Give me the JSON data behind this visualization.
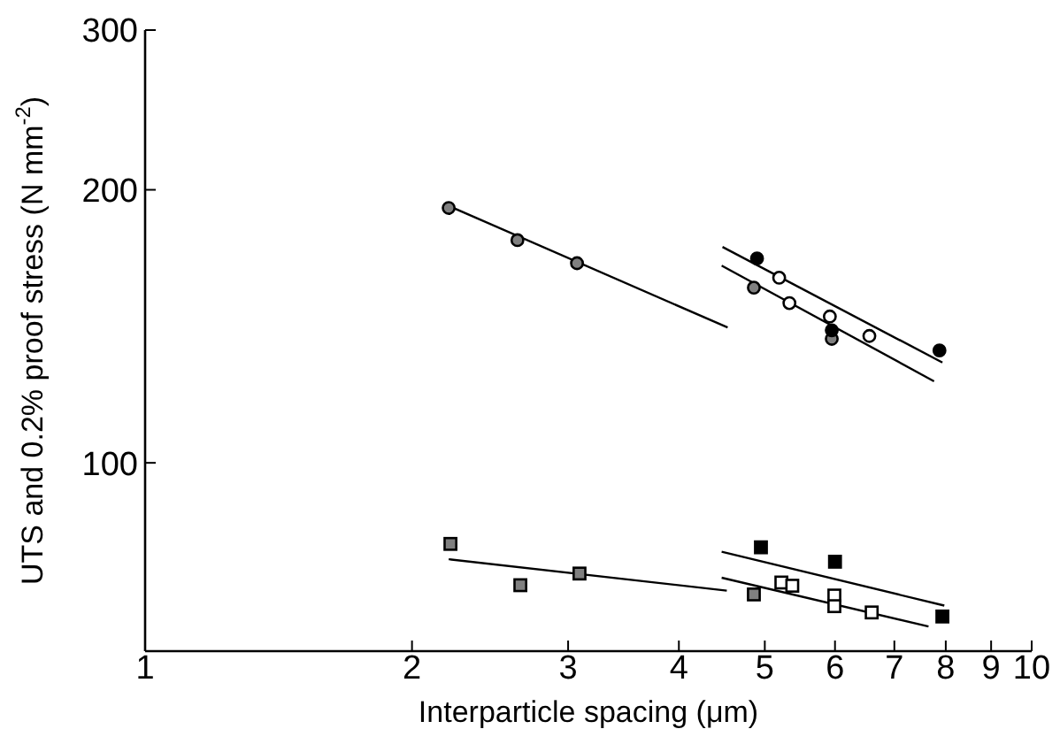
{
  "chart_data": {
    "type": "scatter",
    "xlabel": "Interparticle spacing (μm)",
    "ylabel": "UTS and 0.2% proof stress (N mm$^{-2}$)",
    "log": "xy",
    "grid": false,
    "xlim": [
      1,
      10
    ],
    "xticks": [
      1,
      2,
      3,
      4,
      5,
      6,
      7,
      8,
      9,
      10
    ],
    "ylim": [
      62,
      300
    ],
    "yticks": [
      100,
      200,
      300
    ],
    "series": [
      {
        "marker": "circle",
        "color": "#808080",
        "x": [
          2.2,
          2.63,
          3.07,
          4.86,
          5.95
        ],
        "values": [
          191,
          176,
          166,
          156,
          137
        ]
      },
      {
        "marker": "circle",
        "color": "#000000",
        "x": [
          4.9,
          5.95,
          7.87
        ],
        "values": [
          168,
          140,
          133
        ]
      },
      {
        "marker": "circle",
        "color": "#ffffff",
        "x": [
          5.19,
          5.33,
          5.92,
          6.56
        ],
        "values": [
          160,
          150,
          145,
          138
        ]
      },
      {
        "type": "line",
        "color": "#000000",
        "x": [
          2.2,
          4.54
        ],
        "values": [
          192,
          141
        ]
      },
      {
        "type": "line",
        "color": "#000000",
        "x": [
          4.48,
          7.93
        ],
        "values": [
          173,
          129
        ]
      },
      {
        "type": "line",
        "color": "#000000",
        "x": [
          4.47,
          7.76
        ],
        "values": [
          165,
          123
        ]
      },
      {
        "marker": "square",
        "color": "#808080",
        "x": [
          2.21,
          2.65,
          3.09,
          4.86
        ],
        "values": [
          81.4,
          73.3,
          75.5,
          71.6
        ]
      },
      {
        "marker": "square",
        "color": "#000000",
        "x": [
          4.95,
          6.0,
          7.93
        ],
        "values": [
          80.7,
          77.8,
          67.7
        ]
      },
      {
        "marker": "square",
        "color": "#ffffff",
        "x": [
          5.22,
          5.37,
          5.99,
          5.99,
          6.6
        ],
        "values": [
          73.8,
          73.2,
          71.4,
          69.5,
          68.4
        ]
      },
      {
        "type": "line",
        "color": "#000000",
        "x": [
          2.2,
          4.53
        ],
        "values": [
          78.3,
          72.3
        ]
      },
      {
        "type": "line",
        "color": "#000000",
        "x": [
          4.47,
          7.97
        ],
        "values": [
          79.8,
          69.6
        ]
      },
      {
        "type": "line",
        "color": "#000000",
        "x": [
          4.47,
          7.65
        ],
        "values": [
          74.7,
          66
        ]
      }
    ]
  }
}
